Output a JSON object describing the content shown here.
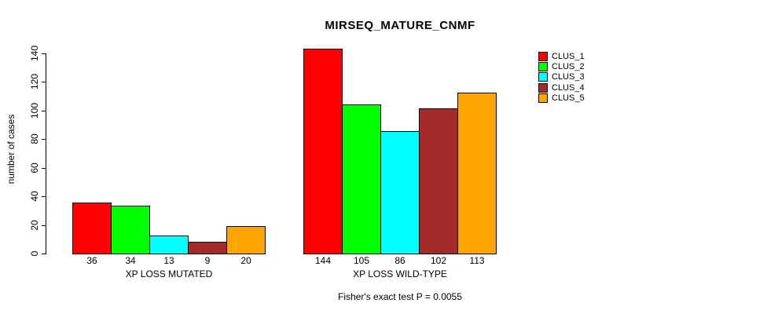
{
  "chart_data": {
    "type": "bar",
    "title": "MIRSEQ_MATURE_CNMF",
    "ylabel": "number of cases",
    "xlabel": "",
    "ylim": [
      0,
      140
    ],
    "yticks": [
      0,
      20,
      40,
      60,
      80,
      100,
      120,
      140
    ],
    "categories": [
      "XP LOSS MUTATED",
      "XP LOSS WILD-TYPE"
    ],
    "series": [
      {
        "name": "CLUS_1",
        "color": "#FF0000",
        "values": [
          36,
          144
        ]
      },
      {
        "name": "CLUS_2",
        "color": "#00FF00",
        "values": [
          34,
          105
        ]
      },
      {
        "name": "CLUS_3",
        "color": "#00FFFF",
        "values": [
          13,
          86
        ]
      },
      {
        "name": "CLUS_4",
        "color": "#A52A2A",
        "values": [
          9,
          102
        ]
      },
      {
        "name": "CLUS_5",
        "color": "#FFA500",
        "values": [
          20,
          113
        ]
      }
    ],
    "bar_value_labels_shown": true,
    "legend_position": "top-right",
    "legend_entries": [
      "CLUS_1",
      "CLUS_2",
      "CLUS_3",
      "CLUS_4",
      "CLUS_5"
    ],
    "annotation": "Fisher's exact test P = 0.0055",
    "grid": false,
    "bar_border_color": "#000000",
    "background_color": "#FFFFFF"
  }
}
